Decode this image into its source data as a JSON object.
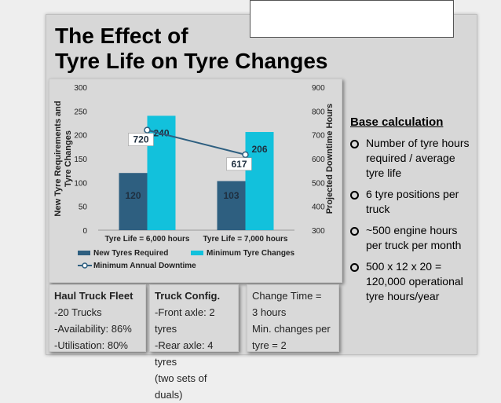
{
  "slide": {
    "title_line1": "The Effect of",
    "title_line2": "Tyre Life on Tyre Changes"
  },
  "chart_data": {
    "type": "bar",
    "categories": [
      "Tyre Life = 6,000 hours",
      "Tyre Life = 7,000 hours"
    ],
    "series": [
      {
        "name": "New Tyres Required",
        "values": [
          120,
          103
        ],
        "color": "#2e5f80",
        "axis": "left"
      },
      {
        "name": "Minimum Tyre Changes",
        "values": [
          240,
          206
        ],
        "color": "#12c1dc",
        "axis": "left"
      },
      {
        "name": "Minimum Annual Downtime",
        "type": "line",
        "values": [
          720,
          617
        ],
        "color": "#2e5f80",
        "axis": "right"
      }
    ],
    "ylabel": "New Tyre Requirements and Tyre Changes",
    "y2label": "Projected Downtime Hours",
    "ylim": [
      0,
      300
    ],
    "y2lim": [
      300,
      900
    ],
    "yticks": [
      "0",
      "50",
      "100",
      "150",
      "200",
      "250",
      "300"
    ],
    "y2ticks": [
      "300",
      "400",
      "500",
      "600",
      "700",
      "800",
      "900"
    ]
  },
  "right_panel": {
    "heading": "Base calculation",
    "bullets": [
      "Number of tyre hours required / average tyre life",
      "6 tyre positions per truck",
      "~500 engine hours per truck per month",
      "500 x 12 x 20 = 120,000 operational tyre hours/year"
    ]
  },
  "boxes": [
    {
      "lines": [
        "Haul Truck Fleet",
        "-20 Trucks",
        "-Availability: 86%",
        "-Utilisation: 80%"
      ]
    },
    {
      "lines": [
        "Truck Config.",
        "-Front axle: 2 tyres",
        "-Rear axle: 4 tyres",
        "(two sets of duals)"
      ]
    },
    {
      "lines": [
        "Change Time =",
        "3 hours",
        "Min. changes per",
        "tyre = 2"
      ]
    }
  ]
}
